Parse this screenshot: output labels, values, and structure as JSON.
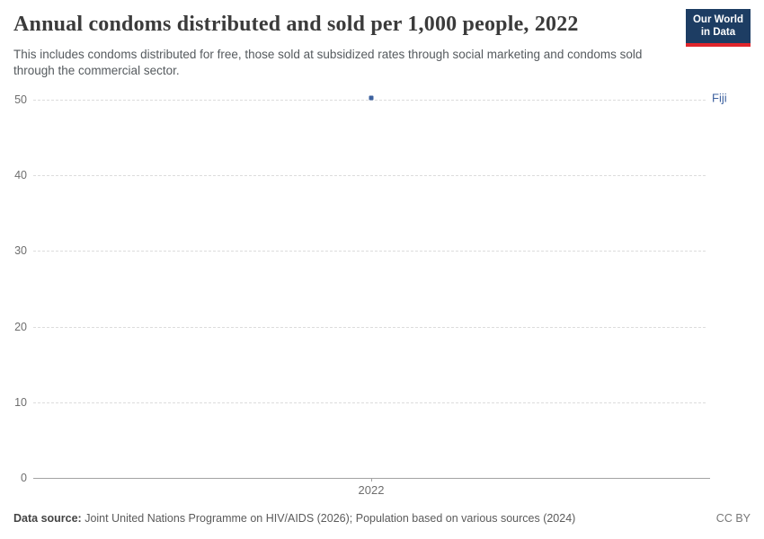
{
  "header": {
    "title": "Annual condoms distributed and sold per 1,000 people, 2022",
    "subtitle": "This includes condoms distributed for free, those sold at subsidized rates through social marketing and condoms sold through the commercial sector.",
    "logo": {
      "line1": "Our World",
      "line2": "in Data",
      "bg_color": "#1d3d63",
      "accent_color": "#e0262c"
    }
  },
  "chart_data": {
    "type": "scatter",
    "title": "Annual condoms distributed and sold per 1,000 people, 2022",
    "x": [
      2022
    ],
    "series": [
      {
        "name": "Fiji",
        "values": [
          50.2
        ],
        "color": "#3d619f"
      }
    ],
    "xticks": [
      "2022"
    ],
    "yticks": [
      0,
      10,
      20,
      30,
      40,
      50
    ],
    "ylim": [
      0,
      50
    ],
    "xlabel": "",
    "ylabel": "",
    "grid": "horizontal-dashed",
    "legend": "entity-label-right"
  },
  "footer": {
    "source_label": "Data source:",
    "source_text": " Joint United Nations Programme on HIV/AIDS (2026); Population based on various sources (2024)",
    "license": "CC BY"
  }
}
